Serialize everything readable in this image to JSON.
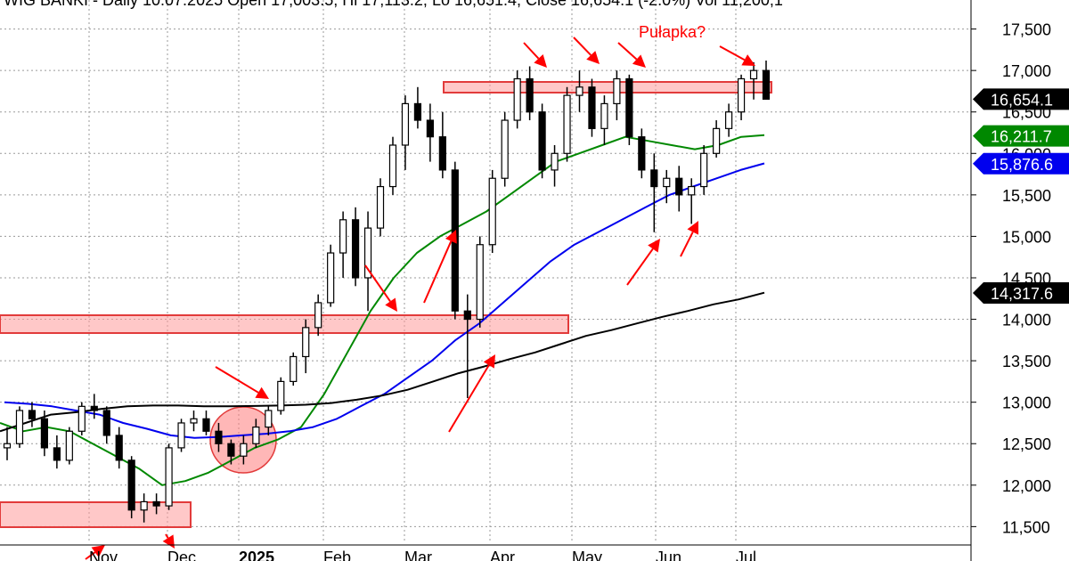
{
  "chart_data": {
    "type": "candlestick",
    "header": "WIG BANKI - Daily 10.07.2025 Open 17,003.5, Hi 17,113.2, Lo 16,651.4, Close 16,654.1 (-2.0%) Vol 11,200,1",
    "y_ticks": [
      11500,
      12000,
      12500,
      13000,
      13500,
      14000,
      14500,
      15000,
      15500,
      16000,
      16500,
      17000,
      17500
    ],
    "y_tick_labels": [
      "11,500",
      "12,000",
      "12,500",
      "13,000",
      "13,500",
      "14,000",
      "14,500",
      "15,000",
      "15,500",
      "16,000",
      "16,500",
      "17,000",
      "17,500"
    ],
    "ylim": [
      11300,
      17850
    ],
    "x_labels": [
      "Nov",
      "Dec",
      "2025",
      "Feb",
      "Mar",
      "Apr",
      "May",
      "Jun",
      "Jul"
    ],
    "price_tags": [
      {
        "label": "16,654.1",
        "value": 16654.1,
        "color": "#000000"
      },
      {
        "label": "16,211.7",
        "value": 16211.7,
        "color": "#008800"
      },
      {
        "label": "15,876.6",
        "value": 15876.6,
        "color": "#0000ee"
      },
      {
        "label": "14,317.6",
        "value": 14317.6,
        "color": "#000000"
      }
    ],
    "annotation": "Pułapka?",
    "series": [
      {
        "color": "#008800",
        "values": [
          12750,
          12650,
          12700,
          12650,
          12500,
          12350,
          12200,
          12000,
          12050,
          12150,
          12300,
          12450,
          12550,
          12700,
          13100,
          13600,
          14100,
          14500,
          14800,
          15000,
          15150,
          15300,
          15500,
          15700,
          15900,
          16000,
          16100,
          16200,
          16150,
          16100,
          16050,
          16100,
          16200,
          16220
        ]
      },
      {
        "color": "#0000ee",
        "values": [
          13000,
          12980,
          12950,
          12900,
          12850,
          12750,
          12680,
          12600,
          12570,
          12580,
          12600,
          12620,
          12650,
          12700,
          12800,
          12950,
          13100,
          13300,
          13500,
          13750,
          13950,
          14200,
          14450,
          14700,
          14900,
          15050,
          15200,
          15350,
          15500,
          15600,
          15700,
          15800,
          15880
        ]
      },
      {
        "color": "#000000",
        "values": [
          12650,
          12750,
          12850,
          12880,
          12920,
          12950,
          12960,
          12960,
          12950,
          12950,
          12955,
          12960,
          12970,
          12990,
          13030,
          13080,
          13150,
          13250,
          13350,
          13430,
          13520,
          13600,
          13700,
          13800,
          13870,
          13950,
          14030,
          14100,
          14180,
          14240,
          14320
        ]
      }
    ],
    "candles": [
      [
        12450,
        12700,
        12300,
        12500
      ],
      [
        12500,
        12950,
        12450,
        12900
      ],
      [
        12900,
        13000,
        12700,
        12800
      ],
      [
        12800,
        12900,
        12350,
        12450
      ],
      [
        12450,
        12600,
        12200,
        12300
      ],
      [
        12300,
        12700,
        12250,
        12650
      ],
      [
        12650,
        13000,
        12600,
        12950
      ],
      [
        12950,
        13100,
        12800,
        12900
      ],
      [
        12900,
        12950,
        12500,
        12600
      ],
      [
        12600,
        12700,
        12200,
        12300
      ],
      [
        12300,
        12350,
        11600,
        11700
      ],
      [
        11700,
        11900,
        11550,
        11800
      ],
      [
        11800,
        11900,
        11650,
        11750
      ],
      [
        11750,
        12500,
        11700,
        12450
      ],
      [
        12450,
        12800,
        12400,
        12750
      ],
      [
        12750,
        12900,
        12650,
        12800
      ],
      [
        12800,
        12900,
        12600,
        12650
      ],
      [
        12650,
        12750,
        12400,
        12500
      ],
      [
        12500,
        12550,
        12250,
        12350
      ],
      [
        12350,
        12600,
        12250,
        12500
      ],
      [
        12500,
        12800,
        12450,
        12700
      ],
      [
        12700,
        12950,
        12600,
        12900
      ],
      [
        12900,
        13300,
        12850,
        13250
      ],
      [
        13250,
        13600,
        13200,
        13550
      ],
      [
        13550,
        14000,
        13350,
        13900
      ],
      [
        13900,
        14300,
        13800,
        14200
      ],
      [
        14200,
        14900,
        14150,
        14800
      ],
      [
        14800,
        15300,
        14500,
        15200
      ],
      [
        15200,
        15350,
        14400,
        14500
      ],
      [
        14500,
        15300,
        14100,
        15100
      ],
      [
        15100,
        15700,
        15000,
        15600
      ],
      [
        15600,
        16200,
        15500,
        16100
      ],
      [
        16100,
        16700,
        15800,
        16600
      ],
      [
        16600,
        16800,
        16300,
        16400
      ],
      [
        16400,
        16600,
        15900,
        16200
      ],
      [
        16200,
        16500,
        15700,
        15800
      ],
      [
        15800,
        15900,
        14000,
        14100
      ],
      [
        14100,
        14300,
        13050,
        14000
      ],
      [
        14000,
        15000,
        13900,
        14900
      ],
      [
        14900,
        15800,
        14800,
        15700
      ],
      [
        15700,
        16500,
        15600,
        16400
      ],
      [
        16400,
        17000,
        16300,
        16900
      ],
      [
        16900,
        17050,
        16400,
        16500
      ],
      [
        16500,
        16600,
        15700,
        15800
      ],
      [
        15800,
        16100,
        15600,
        16000
      ],
      [
        16000,
        16800,
        15900,
        16700
      ],
      [
        16700,
        17000,
        16500,
        16800
      ],
      [
        16800,
        16900,
        16200,
        16300
      ],
      [
        16300,
        16700,
        16100,
        16600
      ],
      [
        16600,
        17000,
        16400,
        16900
      ],
      [
        16900,
        16950,
        16100,
        16200
      ],
      [
        16200,
        16300,
        15700,
        15800
      ],
      [
        15800,
        16000,
        15050,
        15600
      ],
      [
        15600,
        15800,
        15400,
        15700
      ],
      [
        15700,
        15850,
        15300,
        15500
      ],
      [
        15500,
        15700,
        15150,
        15600
      ],
      [
        15600,
        16100,
        15500,
        16000
      ],
      [
        16000,
        16400,
        15950,
        16300
      ],
      [
        16300,
        16600,
        16200,
        16500
      ],
      [
        16500,
        16950,
        16400,
        16900
      ],
      [
        16900,
        17100,
        16650,
        17000
      ],
      [
        17000,
        17120,
        16650,
        16654
      ]
    ]
  }
}
